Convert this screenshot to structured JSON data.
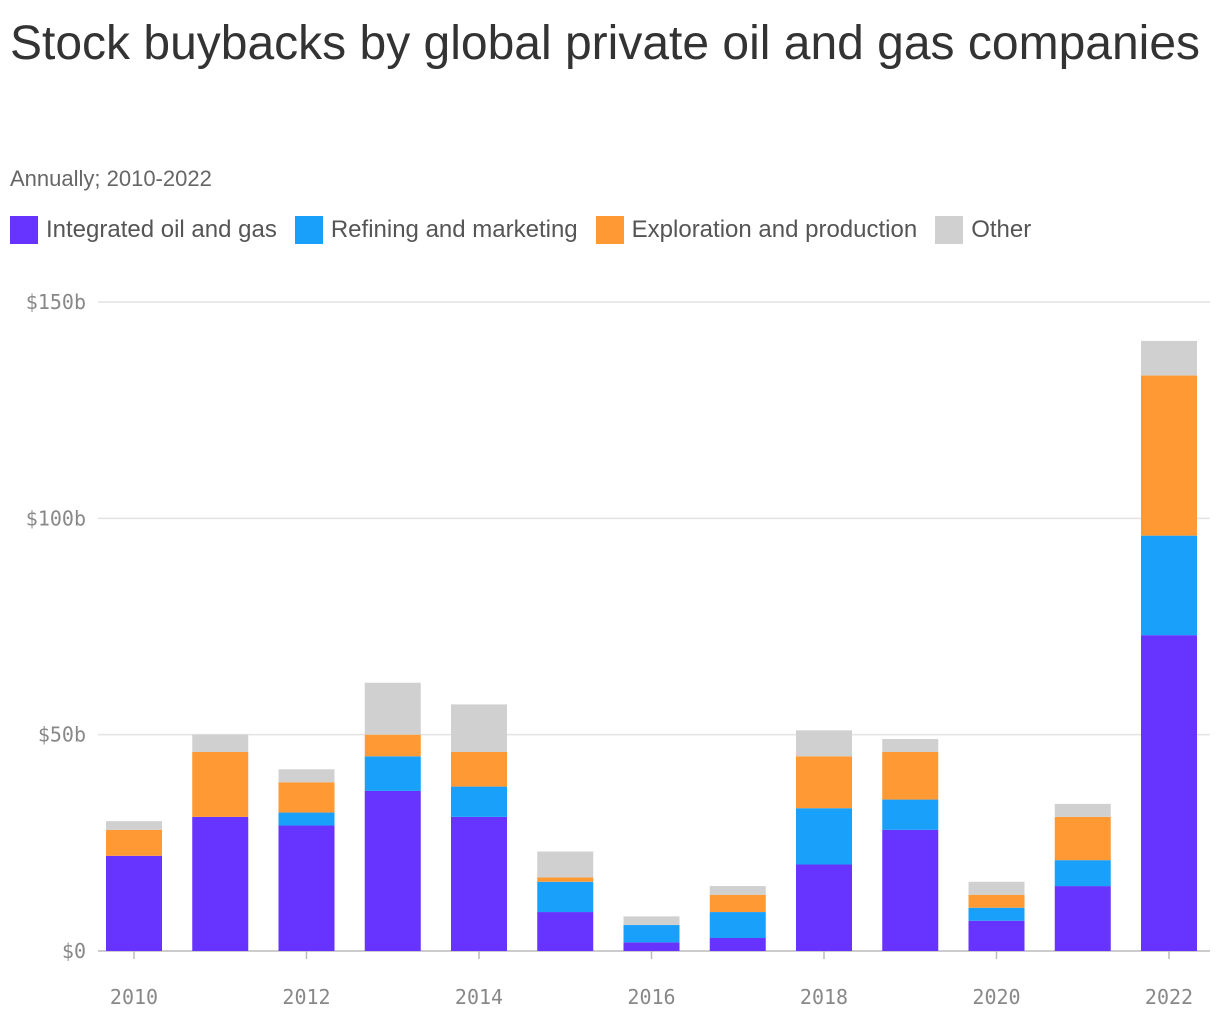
{
  "header": {
    "title": "Stock buybacks by global private oil and gas companies",
    "subtitle": "Annually; 2010-2022"
  },
  "chart_data": {
    "type": "bar",
    "stacked": true,
    "title": "Stock buybacks by global private oil and gas companies",
    "subtitle": "Annually; 2010-2022",
    "xlabel": "",
    "ylabel": "",
    "ylim": [
      0,
      150
    ],
    "y_ticks": [
      0,
      50,
      100,
      150
    ],
    "y_tick_labels": [
      "$0",
      "$50b",
      "$100b",
      "$150b"
    ],
    "x_tick_labels": [
      "2010",
      "2012",
      "2014",
      "2016",
      "2018",
      "2020",
      "2022"
    ],
    "categories": [
      "2010",
      "2011",
      "2012",
      "2013",
      "2014",
      "2015",
      "2016",
      "2017",
      "2018",
      "2019",
      "2020",
      "2021",
      "2022"
    ],
    "legend_position": "top-left",
    "grid": true,
    "series": [
      {
        "name": "Integrated oil and gas",
        "color": "#6633ff",
        "values": [
          22,
          31,
          29,
          37,
          31,
          9,
          2,
          3,
          20,
          28,
          7,
          15,
          73
        ]
      },
      {
        "name": "Refining and marketing",
        "color": "#18a0fb",
        "values": [
          0,
          0,
          3,
          8,
          7,
          7,
          4,
          6,
          13,
          7,
          3,
          6,
          23
        ]
      },
      {
        "name": "Exploration and production",
        "color": "#ff9933",
        "values": [
          6,
          15,
          7,
          5,
          8,
          1,
          0,
          4,
          12,
          11,
          3,
          10,
          37
        ]
      },
      {
        "name": "Other",
        "color": "#d0d0d0",
        "values": [
          2,
          4,
          3,
          12,
          11,
          6,
          2,
          2,
          6,
          3,
          3,
          3,
          8
        ]
      }
    ]
  }
}
